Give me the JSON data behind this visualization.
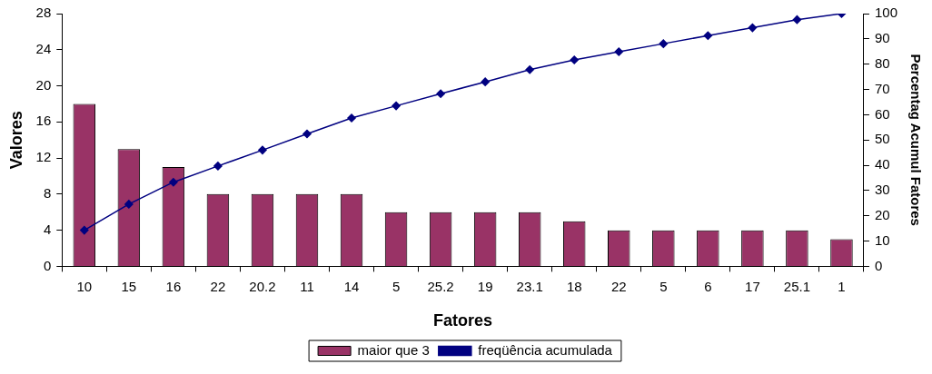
{
  "chart_data": {
    "type": "bar",
    "xlabel": "Fatores",
    "ylabel": "Valores",
    "y2label": "Percentag Acumul Fatores",
    "categories": [
      "10",
      "15",
      "16",
      "22",
      "20.2",
      "11",
      "14",
      "5",
      "25.2",
      "19",
      "23.1",
      "18",
      "22",
      "5",
      "6",
      "17",
      "25.1",
      "1"
    ],
    "series": [
      {
        "name": "maior que 3",
        "color": "#993366",
        "values": [
          18,
          13,
          11,
          8,
          8,
          8,
          8,
          6,
          6,
          6,
          6,
          5,
          4,
          4,
          4,
          4,
          4,
          3
        ]
      },
      {
        "name": "freqüência acumulada",
        "type": "line",
        "axis": "y2",
        "color": "#000080",
        "marker": "diamond",
        "values": [
          14.3,
          24.6,
          33.3,
          39.7,
          46.0,
          52.4,
          58.7,
          63.5,
          68.3,
          73.0,
          77.8,
          81.7,
          84.9,
          88.1,
          91.3,
          94.4,
          97.6,
          100
        ]
      }
    ],
    "ylim": [
      0,
      28
    ],
    "yticks": [
      0,
      4,
      8,
      12,
      16,
      20,
      24,
      28
    ],
    "y2lim": [
      0,
      100
    ],
    "y2ticks": [
      0,
      10,
      20,
      30,
      40,
      50,
      60,
      70,
      80,
      90,
      100
    ],
    "grid": false,
    "legend": "bottom"
  }
}
